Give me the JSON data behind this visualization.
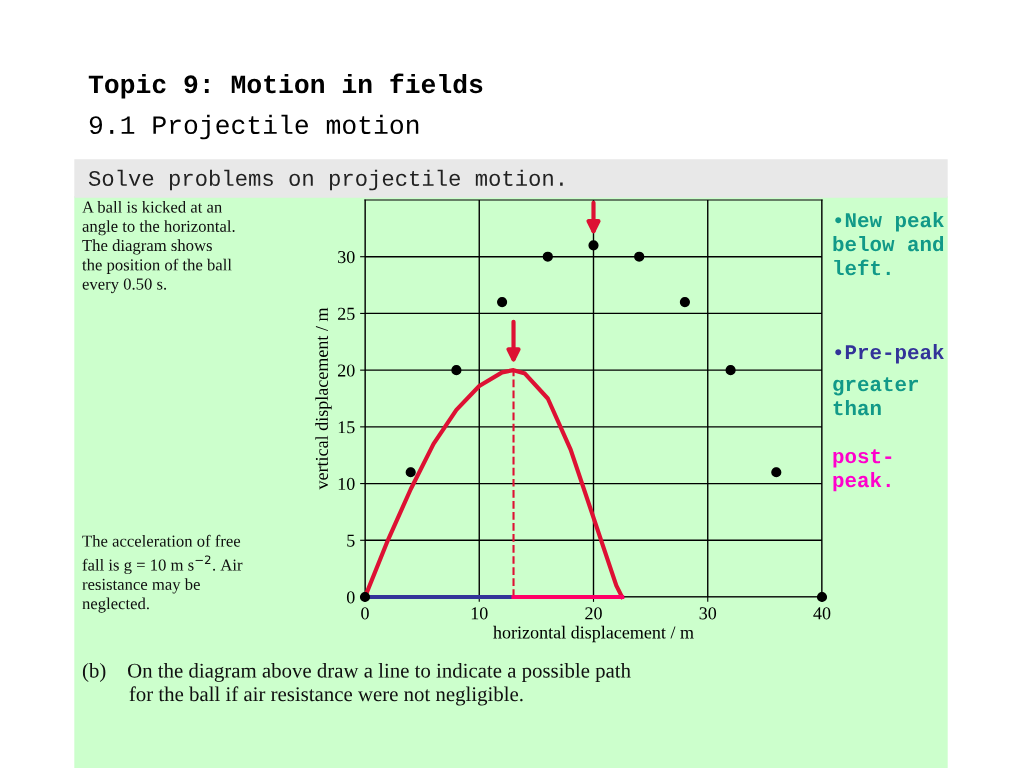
{
  "chart_data": {
    "type": "scatter",
    "title": "Topic 9: Motion in fields",
    "subtitle": "9.1 Projectile motion",
    "xlabel": "horizontal displacement / m",
    "ylabel": "vertical displacement / m",
    "x": [
      0,
      4,
      8,
      12,
      16,
      20,
      24,
      28,
      32,
      36,
      40
    ],
    "series": [
      {
        "color": "#000000",
        "marker": "circle",
        "values": [
          0,
          11,
          20,
          26,
          30,
          31,
          30,
          26,
          20,
          11,
          0
        ]
      },
      {
        "type": "line",
        "color": "#dd1133",
        "marker": "none",
        "line_style": "solid",
        "x": [
          0,
          2,
          4,
          6,
          8,
          10,
          12,
          13,
          14,
          16,
          18,
          20,
          22,
          22.5
        ],
        "values": [
          0,
          5,
          9.5,
          13.5,
          16.5,
          18.6,
          19.8,
          20,
          19.7,
          17.5,
          13,
          7,
          1,
          0
        ]
      },
      {
        "type": "line",
        "color": "#dd1133",
        "marker": "none",
        "line_style": "dashed",
        "x": [
          13,
          13
        ],
        "values": [
          0,
          20
        ]
      },
      {
        "type": "line",
        "color": "#333399",
        "marker": "none",
        "line_style": "solid",
        "x": [
          0,
          13
        ],
        "values": [
          0,
          0
        ]
      },
      {
        "type": "line",
        "color": "#ff0066",
        "marker": "none",
        "line_style": "solid",
        "x": [
          13,
          22.5
        ],
        "values": [
          0,
          0
        ]
      }
    ],
    "xlim": [
      0,
      40
    ],
    "ylim": [
      0,
      35
    ],
    "xticks": [
      0,
      10,
      20,
      30,
      40
    ],
    "yticks": [
      0,
      5,
      10,
      15,
      20,
      25,
      30
    ],
    "grid": true,
    "legend": false,
    "annotations": [
      "Solve problems on projectile motion.",
      "A ball is kicked at an\nangle to the horizontal.\nThe diagram shows\nthe position of the ball\nevery 0.50 s.",
      "The acceleration of free\nfall is g = 10 m s$^{−2}$. Air\nresistance may be\nneglected.",
      "•New peak\nbelow and\nleft.",
      "•Pre-peak",
      "greater\nthan",
      "post-\npeak.",
      "(b)    On the diagram above draw a line to indicate a possible path\n         for the ball if air resistance were not negligible."
    ]
  }
}
